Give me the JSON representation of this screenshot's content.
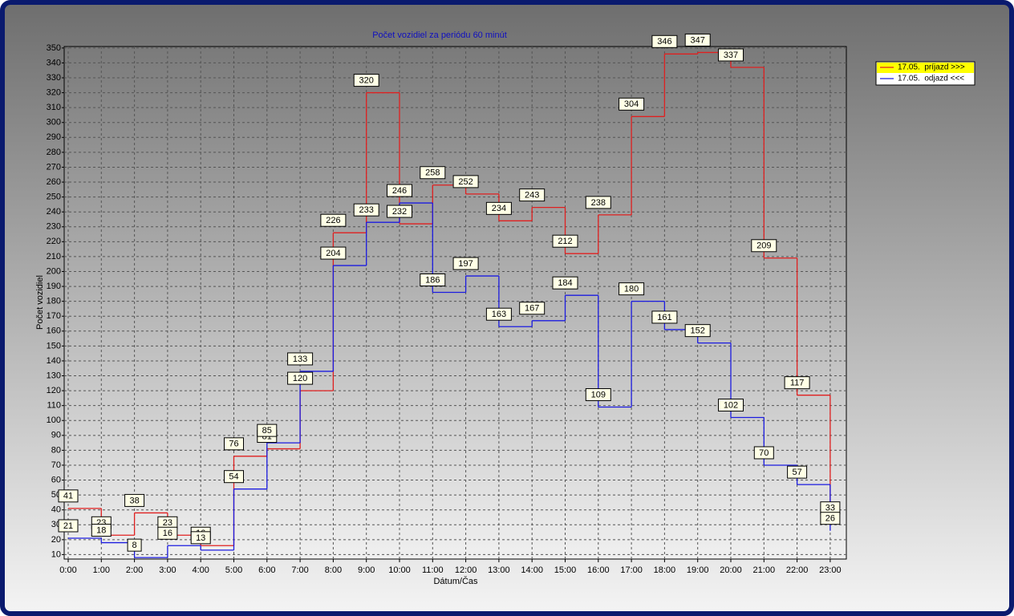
{
  "chart_data": {
    "type": "line",
    "step": "post",
    "title": "Počet vozidiel za periódu 60 minút",
    "x_label": "Dátum/Čas",
    "y_label": "Počet vozidiel",
    "categories": [
      "0:00",
      "1:00",
      "2:00",
      "3:00",
      "4:00",
      "5:00",
      "6:00",
      "7:00",
      "8:00",
      "9:00",
      "10:00",
      "11:00",
      "12:00",
      "13:00",
      "14:00",
      "15:00",
      "16:00",
      "17:00",
      "18:00",
      "19:00",
      "20:00",
      "21:00",
      "22:00",
      "23:00"
    ],
    "series": [
      {
        "name": "17.05.  príjazd >>>",
        "color": "#e02020",
        "values": [
          41,
          23,
          38,
          23,
          16,
          76,
          81,
          120,
          226,
          320,
          232,
          258,
          252,
          234,
          243,
          212,
          238,
          304,
          346,
          347,
          337,
          209,
          117,
          33
        ]
      },
      {
        "name": "17.05.  odjazd <<<",
        "color": "#1c1ce0",
        "values": [
          21,
          18,
          8,
          16,
          13,
          54,
          85,
          133,
          204,
          233,
          246,
          186,
          197,
          163,
          167,
          184,
          109,
          180,
          161,
          152,
          102,
          70,
          57,
          26
        ]
      }
    ],
    "ylim": [
      7,
      351
    ],
    "yticks": [
      10,
      20,
      30,
      40,
      50,
      60,
      70,
      80,
      90,
      100,
      110,
      120,
      130,
      140,
      150,
      160,
      170,
      180,
      190,
      200,
      210,
      220,
      230,
      240,
      250,
      260,
      270,
      280,
      290,
      300,
      310,
      320,
      330,
      340,
      350
    ],
    "grid": true,
    "data_labels": true,
    "legend": "top-right"
  }
}
